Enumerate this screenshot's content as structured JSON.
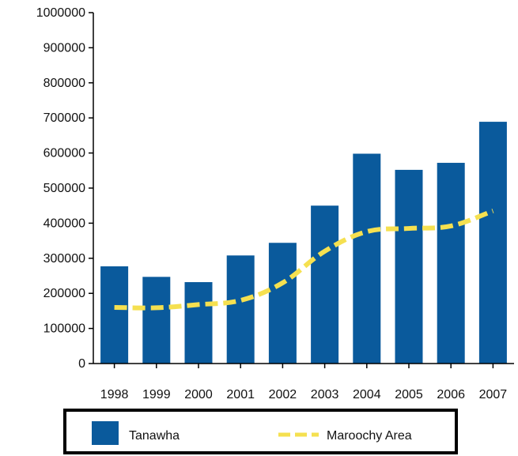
{
  "chart_data": {
    "type": "bar",
    "categories": [
      "1998",
      "1999",
      "2000",
      "2001",
      "2002",
      "2003",
      "2004",
      "2005",
      "2006",
      "2007"
    ],
    "series": [
      {
        "name": "Tanawha",
        "type": "bar",
        "color": "#0a5a9c",
        "values": [
          277000,
          247000,
          232000,
          308000,
          344000,
          450000,
          598000,
          552000,
          572000,
          689000
        ]
      },
      {
        "name": "Maroochy Area",
        "type": "line",
        "style": "dashed",
        "color": "#f5e050",
        "values": [
          160000,
          159000,
          168000,
          180000,
          230000,
          320000,
          376000,
          385000,
          392000,
          435000
        ]
      }
    ],
    "ylim": [
      0,
      1000000
    ],
    "yticks": [
      "0",
      "100000",
      "200000",
      "300000",
      "400000",
      "500000",
      "600000",
      "700000",
      "800000",
      "900000",
      "1000000"
    ],
    "grid": false,
    "legend_position": "bottom"
  }
}
